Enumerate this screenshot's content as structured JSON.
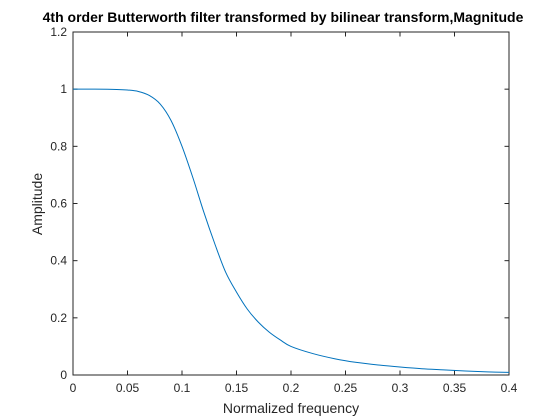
{
  "chart_data": {
    "type": "line",
    "title": "4th order Butterworth filter transformed by bilinear transform,Magnitude",
    "xlabel": "Normalized frequency",
    "ylabel": "Amplitude",
    "xlim": [
      0,
      0.4
    ],
    "ylim": [
      0,
      1.2
    ],
    "xticks": [
      0,
      0.05,
      0.1,
      0.15,
      0.2,
      0.25,
      0.3,
      0.35,
      0.4
    ],
    "yticks": [
      0,
      0.2,
      0.4,
      0.6,
      0.8,
      1,
      1.2
    ],
    "xtick_labels": [
      "0",
      "0.05",
      "0.1",
      "0.15",
      "0.2",
      "0.25",
      "0.3",
      "0.35",
      "0.4"
    ],
    "ytick_labels": [
      "0",
      "0.2",
      "0.4",
      "0.6",
      "0.8",
      "1",
      "1.2"
    ],
    "grid": false,
    "line_color": "#0072BD",
    "series": [
      {
        "x": [
          0,
          0.02,
          0.04,
          0.05,
          0.06,
          0.07,
          0.08,
          0.09,
          0.1,
          0.11,
          0.12,
          0.13,
          0.14,
          0.15,
          0.16,
          0.17,
          0.18,
          0.19,
          0.2,
          0.22,
          0.24,
          0.26,
          0.28,
          0.3,
          0.32,
          0.34,
          0.36,
          0.38,
          0.4
        ],
        "values": [
          1.0,
          1.0,
          0.999,
          0.997,
          0.992,
          0.978,
          0.948,
          0.89,
          0.8,
          0.69,
          0.57,
          0.46,
          0.36,
          0.29,
          0.23,
          0.185,
          0.15,
          0.123,
          0.1,
          0.075,
          0.057,
          0.044,
          0.035,
          0.028,
          0.022,
          0.018,
          0.014,
          0.011,
          0.009
        ]
      }
    ]
  }
}
